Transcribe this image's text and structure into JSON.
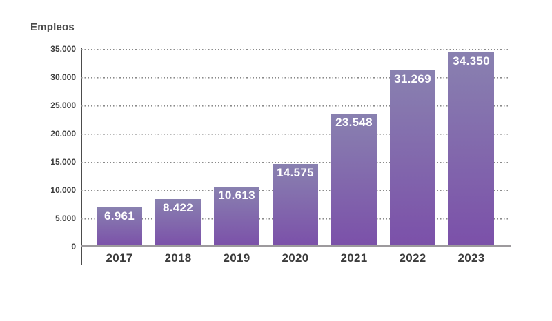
{
  "chart_data": {
    "type": "bar",
    "title": "Empleos",
    "categories": [
      "2017",
      "2018",
      "2019",
      "2020",
      "2021",
      "2022",
      "2023"
    ],
    "values": [
      6961,
      8422,
      10613,
      14575,
      23548,
      31269,
      34350
    ],
    "value_labels": [
      "6.961",
      "8.422",
      "10.613",
      "14.575",
      "23.548",
      "31.269",
      "34.350"
    ],
    "xlabel": "",
    "ylabel": "Empleos",
    "ylim": [
      0,
      35000
    ],
    "ytick_step": 5000,
    "ytick_labels_top_to_bottom": [
      "35.000",
      "30.000",
      "25.000",
      "20.000",
      "15.000",
      "10.000",
      "5.000",
      "0"
    ],
    "grid": "horizontal-dotted",
    "legend": "none",
    "colors": {
      "bar_gradient_top": "#8981b0",
      "bar_gradient_bottom": "#7b50a9",
      "value_label_text": "#ffffff",
      "axis_line": "#4c4c4c",
      "baseline": "#9d9a9d",
      "gridline": "#8a8a8a",
      "tick_text": "#3d3d3d",
      "category_text": "#3b3b3b",
      "title_text": "#4a4a4a",
      "background": "#ffffff"
    }
  }
}
